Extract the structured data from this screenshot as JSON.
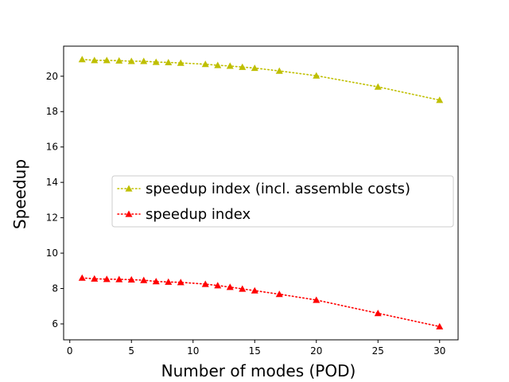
{
  "chart_data": {
    "type": "line",
    "title": "",
    "xlabel": "Number of modes (POD)",
    "ylabel": "Speedup",
    "xlim": [
      -0.5,
      31.5
    ],
    "ylim": [
      5.1,
      21.7
    ],
    "xticks": [
      0,
      5,
      10,
      15,
      20,
      25,
      30
    ],
    "yticks": [
      6,
      8,
      10,
      12,
      14,
      16,
      18,
      20
    ],
    "xtick_labels": [
      "0",
      "5",
      "10",
      "15",
      "20",
      "25",
      "30"
    ],
    "ytick_labels": [
      "6",
      "8",
      "10",
      "12",
      "14",
      "16",
      "18",
      "20"
    ],
    "grid": false,
    "legend_position": "center-right",
    "x": [
      1,
      2,
      3,
      4,
      5,
      6,
      7,
      8,
      9,
      11,
      12,
      13,
      14,
      15,
      17,
      20,
      25,
      30
    ],
    "series": [
      {
        "name": "speedup index (incl. assemble costs)",
        "color": "#bfbf00",
        "marker": "triangle",
        "linestyle": "dotted",
        "values": [
          20.95,
          20.9,
          20.9,
          20.88,
          20.85,
          20.85,
          20.8,
          20.78,
          20.75,
          20.68,
          20.62,
          20.58,
          20.52,
          20.46,
          20.3,
          20.03,
          19.4,
          18.65
        ]
      },
      {
        "name": "speedup index",
        "color": "#ff0000",
        "marker": "triangle",
        "linestyle": "dotted",
        "values": [
          8.6,
          8.55,
          8.53,
          8.52,
          8.5,
          8.47,
          8.4,
          8.37,
          8.35,
          8.25,
          8.17,
          8.08,
          7.98,
          7.88,
          7.68,
          7.35,
          6.6,
          5.85
        ]
      }
    ]
  }
}
